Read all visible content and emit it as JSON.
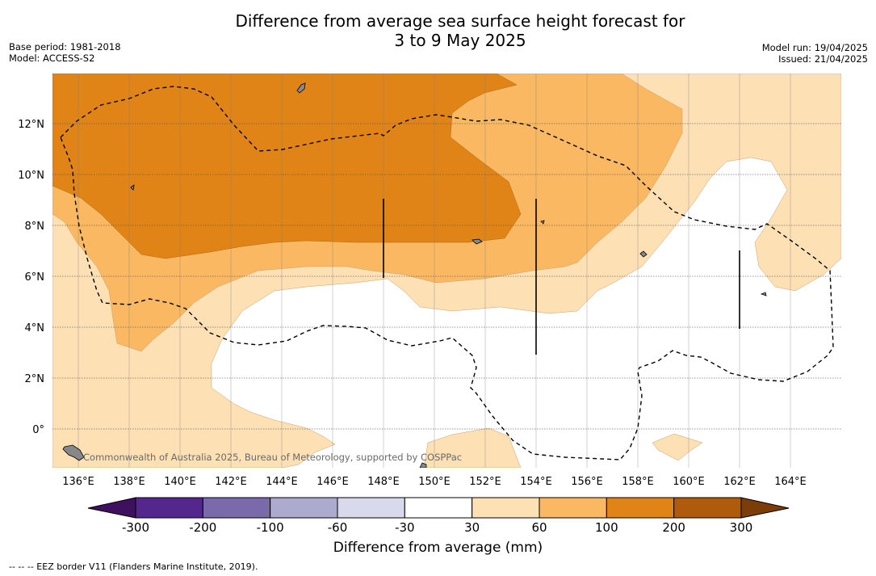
{
  "title": {
    "line1": "Difference from average sea surface height forecast for",
    "line2": "3 to 9 May 2025"
  },
  "meta_left": {
    "base_period": "Base period: 1981-2018",
    "model": "Model: ACCESS-S2"
  },
  "meta_right": {
    "model_run": "Model run: 19/04/2025",
    "issued": "Issued: 21/04/2025"
  },
  "map": {
    "lat_labels": [
      "12°N",
      "10°N",
      "8°N",
      "6°N",
      "4°N",
      "2°N",
      "0°"
    ],
    "lon_labels": [
      "136°E",
      "138°E",
      "140°E",
      "142°E",
      "144°E",
      "146°E",
      "148°E",
      "150°E",
      "152°E",
      "154°E",
      "156°E",
      "158°E",
      "160°E",
      "162°E",
      "164°E"
    ],
    "copyright": "Commonwealth of Australia 2025, Bureau of Meteorology, supported by COSPPac",
    "colors": {
      "pos_30_60": "#fde0b4",
      "pos_60_100": "#f9b861",
      "pos_100_200": "#e08418",
      "land": "#888888"
    }
  },
  "colorbar": {
    "ticks": [
      "-300",
      "-200",
      "-100",
      "-60",
      "-30",
      "30",
      "60",
      "100",
      "200",
      "300"
    ],
    "colors": [
      "#54278f",
      "#7b6aab",
      "#adaad0",
      "#d9d9ec",
      "#ffffff",
      "#fde0b4",
      "#f9b861",
      "#e08418",
      "#b05a0c"
    ],
    "under_color": "#3f0f60",
    "over_color": "#7d3d08",
    "label": "Difference from average (mm)"
  },
  "footer": "-- -- -- EEZ border V11 (Flanders Marine Institute, 2019)."
}
